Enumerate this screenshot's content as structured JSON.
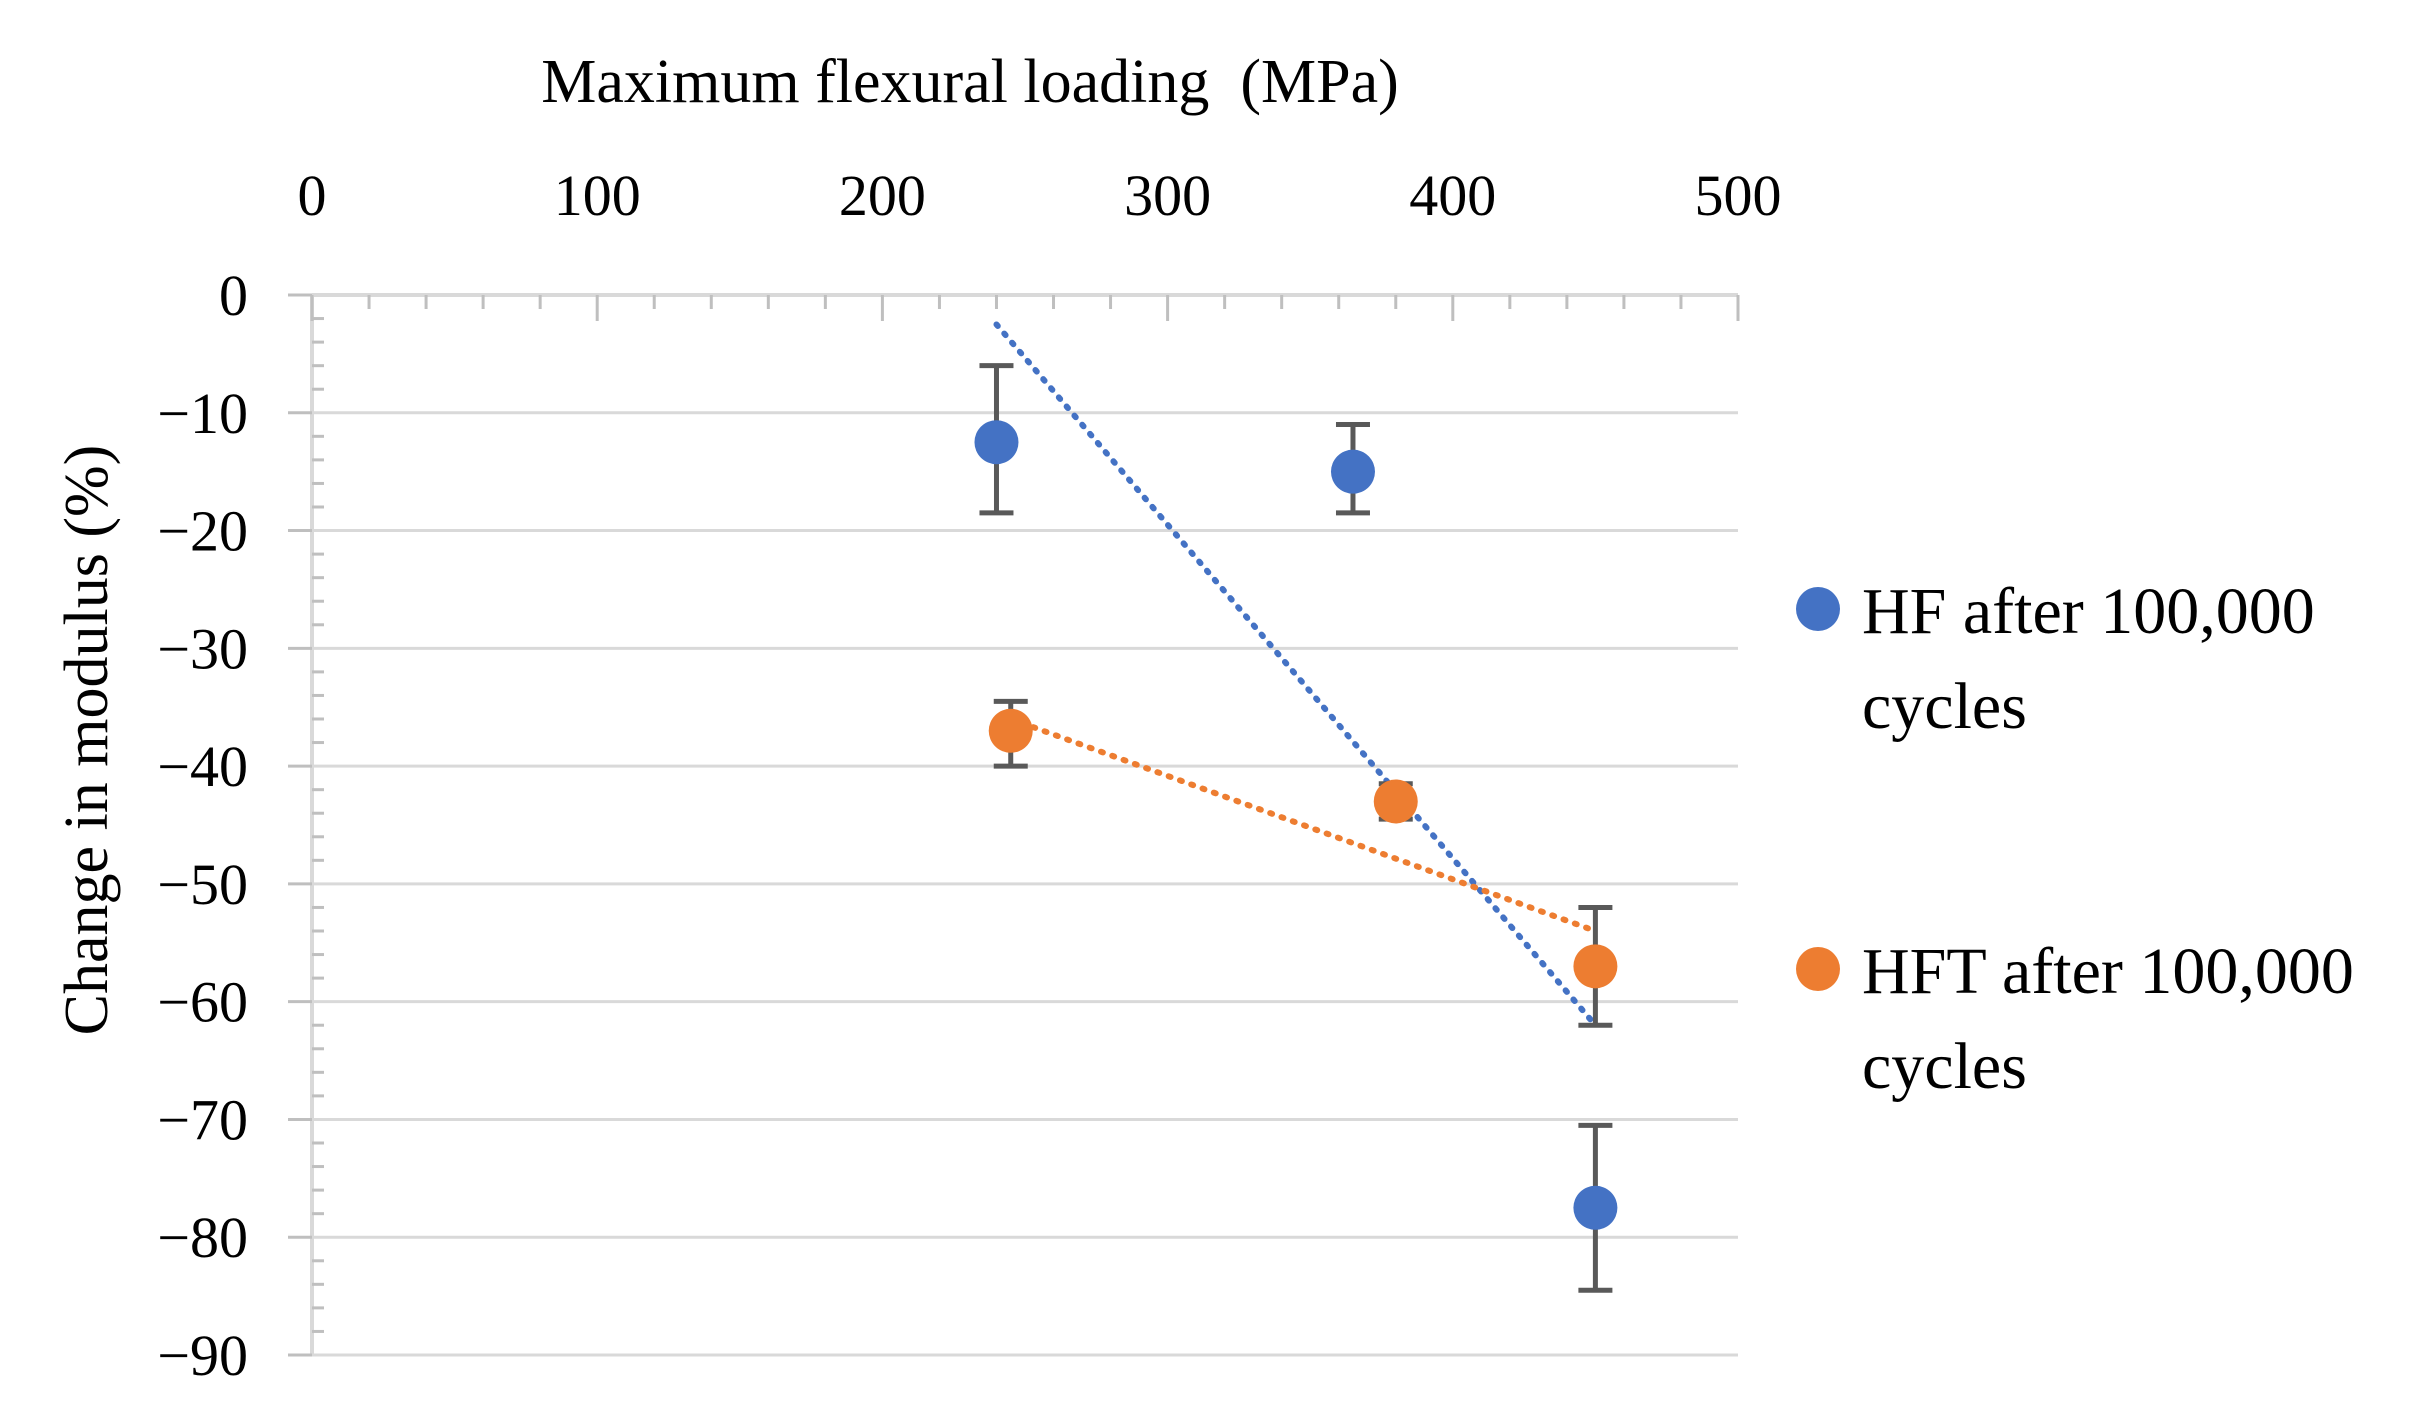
{
  "chart_data": {
    "type": "scatter",
    "title": "",
    "xlabel": "Maximum flexural loading  (MPa)",
    "ylabel": "Change in modulus (%)",
    "xlim": [
      0,
      500
    ],
    "ylim": [
      -90,
      0
    ],
    "x_ticks": [
      0,
      100,
      200,
      300,
      400,
      500
    ],
    "y_ticks": [
      0,
      -10,
      -20,
      -30,
      -40,
      -50,
      -60,
      -70,
      -80,
      -90
    ],
    "x_tick_labels": [
      "0",
      "100",
      "200",
      "300",
      "400",
      "500"
    ],
    "y_tick_labels": [
      "0",
      "−10",
      "−20",
      "−30",
      "−40",
      "−50",
      "−60",
      "−70",
      "−80",
      "−90"
    ],
    "x_axis_position": "top",
    "grid": "horizontal",
    "legend_position": "right",
    "series": [
      {
        "name": "HF after 100,000 cycles",
        "legend_lines": [
          "HF after 100,000",
          "cycles"
        ],
        "color": "#4472C4",
        "points": [
          {
            "x": 240,
            "y": -12.5,
            "err_low": 6,
            "err_high": 6.5
          },
          {
            "x": 365,
            "y": -15,
            "err_low": 3.5,
            "err_high": 4
          },
          {
            "x": 450,
            "y": -77.5,
            "err_low": 7,
            "err_high": 7
          }
        ],
        "trendline": {
          "style": "dotted",
          "from": [
            240,
            -2.5
          ],
          "to": [
            450,
            -62
          ]
        }
      },
      {
        "name": "HFT after 100,000 cycles",
        "legend_lines": [
          "HFT after 100,000",
          "cycles"
        ],
        "color": "#ED7D31",
        "points": [
          {
            "x": 245,
            "y": -37,
            "err_low": 3,
            "err_high": 2.5
          },
          {
            "x": 380,
            "y": -43,
            "err_low": 1.5,
            "err_high": 1.5
          },
          {
            "x": 450,
            "y": -57,
            "err_low": 5,
            "err_high": 5
          }
        ],
        "trendline": {
          "style": "dotted",
          "from": [
            245,
            -36
          ],
          "to": [
            450,
            -54
          ]
        }
      }
    ]
  }
}
